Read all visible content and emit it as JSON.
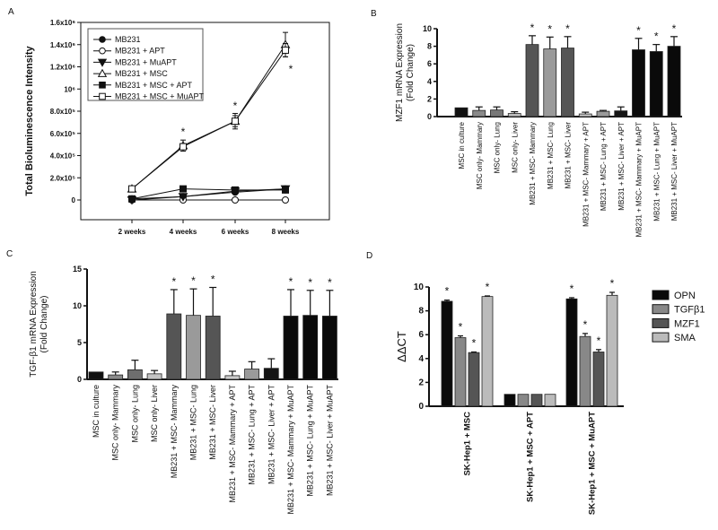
{
  "chart_data": [
    {
      "panel": "A",
      "type": "line",
      "title": "",
      "xlabel": "",
      "ylabel": "Total Bioluminescence Intensity",
      "categories": [
        "2 weeks",
        "4 weeks",
        "6 weeks",
        "8 weeks"
      ],
      "ylim": [
        -180000,
        1600000
      ],
      "yticks": [
        {
          "v": 0,
          "label": "0"
        },
        {
          "v": 200000,
          "label": "2.0x10⁵"
        },
        {
          "v": 400000,
          "label": "4.0x10⁵"
        },
        {
          "v": 600000,
          "label": "6.0x10⁵"
        },
        {
          "v": 800000,
          "label": "8.0x10⁵"
        },
        {
          "v": 1000000,
          "label": "10⁶"
        },
        {
          "v": 1200000,
          "label": "1.2x10⁶"
        },
        {
          "v": 1400000,
          "label": "1.4x10⁶"
        },
        {
          "v": 1600000,
          "label": "1.6x10⁶"
        }
      ],
      "legend_position": "top-left",
      "series": [
        {
          "name": "MB231",
          "marker": "circle-filled",
          "values": [
            10000,
            30000,
            70000,
            100000
          ],
          "errors": [
            0,
            0,
            0,
            0
          ]
        },
        {
          "name": "MB231 + APT",
          "marker": "circle-open",
          "values": [
            0,
            0,
            0,
            0
          ],
          "errors": [
            0,
            0,
            0,
            0
          ]
        },
        {
          "name": "MB231 + MuAPT",
          "marker": "triangle-down-filled",
          "values": [
            0,
            30000,
            80000,
            100000
          ],
          "errors": [
            0,
            0,
            0,
            0
          ]
        },
        {
          "name": "MB231 + MSC",
          "marker": "triangle-up-open",
          "values": [
            100000,
            490000,
            710000,
            1400000
          ],
          "errors": [
            0,
            50000,
            70000,
            110000
          ]
        },
        {
          "name": "MB231 + MSC + APT",
          "marker": "square-filled",
          "values": [
            10000,
            100000,
            90000,
            90000
          ],
          "errors": [
            0,
            0,
            0,
            0
          ]
        },
        {
          "name": "MB231 + MSC + MuAPT",
          "marker": "square-open",
          "values": [
            100000,
            480000,
            710000,
            1350000
          ],
          "errors": [
            0,
            20000,
            50000,
            60000
          ]
        }
      ],
      "significance": [
        {
          "category": "4 weeks",
          "label": "*"
        },
        {
          "category": "6 weeks",
          "label": "*"
        },
        {
          "category": "8 weeks",
          "label": "*"
        }
      ]
    },
    {
      "panel": "B",
      "type": "bar",
      "ylabel": [
        "MZF1 mRNA Expression",
        "(Fold Change)"
      ],
      "ylim": [
        0,
        10
      ],
      "yticks": [
        0,
        2,
        4,
        6,
        8,
        10
      ],
      "categories": [
        "MSC in culture",
        "MSC only- Mammary",
        "MSC only- Lung",
        "MSC only- Liver",
        "MB231 + MSC- Mammary",
        "MB231 + MSC- Lung",
        "MB231 + MSC- Liver",
        "MB231 + MSC- Mammary + APT",
        "MB231 + MSC- Lung + APT",
        "MB231 + MSC- Liver + APT",
        "MB231 + MSC- Mammary + MuAPT",
        "MB231 + MSC- Lung + MuAPT",
        "MB231 + MSC- Liver + MuAPT"
      ],
      "values": [
        1.0,
        0.7,
        0.75,
        0.35,
        8.2,
        7.7,
        7.8,
        0.3,
        0.6,
        0.65,
        7.6,
        7.4,
        8.0
      ],
      "errors": [
        0,
        0.4,
        0.35,
        0.2,
        1.0,
        1.35,
        1.3,
        0.2,
        0.1,
        0.45,
        1.3,
        0.8,
        1.1
      ],
      "colors": [
        "#111111",
        "#8a8a8a",
        "#787878",
        "#bdbdbd",
        "#555555",
        "#9a9a9a",
        "#555555",
        "#cccccc",
        "#9a9a9a",
        "#151515",
        "#0a0a0a",
        "#0a0a0a",
        "#0a0a0a"
      ],
      "significant": [
        false,
        false,
        false,
        false,
        true,
        true,
        true,
        false,
        false,
        false,
        true,
        true,
        true
      ],
      "sig_label": "*"
    },
    {
      "panel": "C",
      "type": "bar",
      "ylabel": [
        "TGF-β1 mRNA Expression",
        "(Fold Change)"
      ],
      "ylim": [
        0,
        15
      ],
      "yticks": [
        0,
        5,
        10,
        15
      ],
      "categories": [
        "MSC in culture",
        "MSC only- Mammary",
        "MSC only- Lung",
        "MSC only- Liver",
        "MB231 + MSC- Mammary",
        "MB231 + MSC- Lung",
        "MB231 + MSC- Liver",
        "MB231 + MSC- Mammary + APT",
        "MB231 + MSC- Lung + APT",
        "MB231 + MSC- Liver + APT",
        "MB231 + MSC- Mammary + MuAPT",
        "MB231 + MSC- Lung + MuAPT",
        "MB231 + MSC- Liver + MuAPT"
      ],
      "values": [
        1.0,
        0.6,
        1.3,
        0.75,
        8.9,
        8.7,
        8.6,
        0.5,
        1.4,
        1.5,
        8.6,
        8.7,
        8.6
      ],
      "errors": [
        0,
        0.4,
        1.3,
        0.45,
        3.3,
        3.6,
        3.9,
        0.6,
        1.0,
        1.3,
        3.6,
        3.4,
        3.5
      ],
      "colors": [
        "#111111",
        "#8a8a8a",
        "#6e6e6e",
        "#c4c4c4",
        "#555555",
        "#9a9a9a",
        "#555555",
        "#cccccc",
        "#9a9a9a",
        "#151515",
        "#0a0a0a",
        "#0a0a0a",
        "#0a0a0a"
      ],
      "significant": [
        false,
        false,
        false,
        false,
        true,
        true,
        true,
        false,
        false,
        false,
        true,
        true,
        true
      ],
      "sig_label": "*"
    },
    {
      "panel": "D",
      "type": "bar",
      "ylabel": "ΔΔCT",
      "ylim": [
        0,
        10
      ],
      "yticks": [
        0,
        2,
        4,
        6,
        8,
        10
      ],
      "categories": [
        "SK-Hep1 + MSC",
        "SK-Hep1 + MSC + APT",
        "SK-Hep1 + MSC + MuAPT"
      ],
      "legend_position": "right",
      "series": [
        {
          "name": "OPN",
          "color": "#0a0a0a",
          "values": [
            8.8,
            1.0,
            9.0
          ],
          "errors": [
            0.1,
            0,
            0.1
          ],
          "significant": [
            true,
            false,
            true
          ]
        },
        {
          "name": "TGFβ1",
          "color": "#888888",
          "values": [
            5.75,
            1.0,
            5.85
          ],
          "errors": [
            0.15,
            0,
            0.25
          ],
          "significant": [
            true,
            false,
            true
          ]
        },
        {
          "name": "MZF1",
          "color": "#555555",
          "values": [
            4.5,
            1.0,
            4.55
          ],
          "errors": [
            0.05,
            0,
            0.2
          ],
          "significant": [
            true,
            false,
            true
          ]
        },
        {
          "name": "SMA",
          "color": "#bbbbbb",
          "values": [
            9.2,
            1.0,
            9.3
          ],
          "errors": [
            0.05,
            0,
            0.25
          ],
          "significant": [
            true,
            false,
            true
          ]
        }
      ],
      "sig_label": "*"
    }
  ],
  "panel_letters": [
    "A",
    "B",
    "C",
    "D"
  ]
}
